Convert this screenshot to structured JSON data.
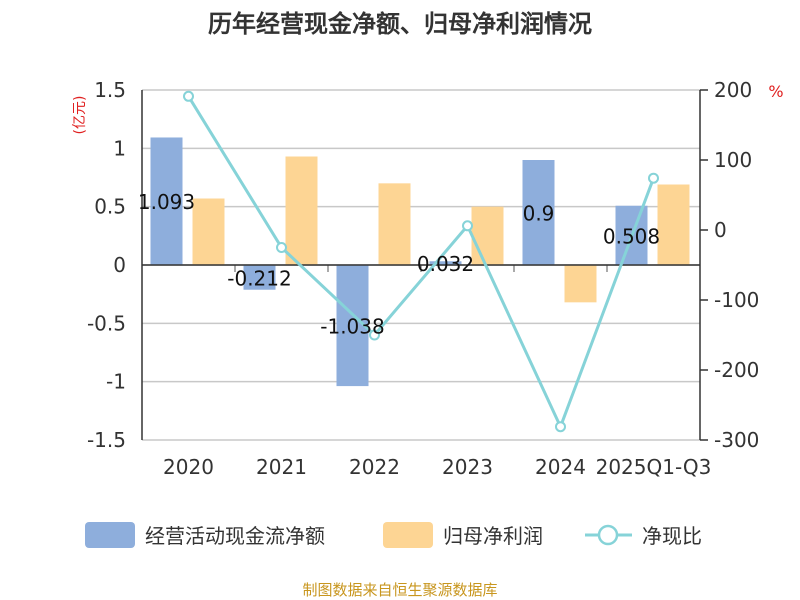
{
  "chart_data": {
    "type": "bar",
    "title": "历年经营现金净额、归母净利润情况",
    "categories": [
      "2020",
      "2021",
      "2022",
      "2023",
      "2024",
      "2025Q1-Q3"
    ],
    "series": [
      {
        "name": "经营活动现金流净额",
        "type": "bar",
        "axis": "left",
        "color": "#8eaedc",
        "values": [
          1.093,
          -0.212,
          -1.038,
          0.032,
          0.9,
          0.508
        ],
        "labels": [
          "1.093",
          "-0.212",
          "-1.038",
          "0.032",
          "0.9",
          "0.508"
        ]
      },
      {
        "name": "归母净利润",
        "type": "bar",
        "axis": "left",
        "color": "#fdd594",
        "values": [
          0.57,
          0.93,
          0.7,
          0.5,
          -0.32,
          0.69
        ]
      },
      {
        "name": "净现比",
        "type": "line",
        "axis": "right",
        "color": "#86d3d8",
        "values": [
          191,
          -25,
          -150,
          6,
          -281,
          74
        ]
      }
    ],
    "y_left": {
      "unit": "(亿元)",
      "ylim": [
        -1.5,
        1.5
      ],
      "ticks": [
        1.5,
        1,
        0.5,
        0,
        -0.5,
        -1,
        -1.5
      ],
      "tick_labels": [
        "1.5",
        "1",
        "0.5",
        "0",
        "-0.5",
        "-1",
        "-1.5"
      ]
    },
    "y_right": {
      "unit": "%",
      "ylim": [
        -300,
        200
      ],
      "ticks": [
        200,
        100,
        0,
        -100,
        -200,
        -300
      ],
      "tick_labels": [
        "200",
        "100",
        "0",
        "-100",
        "-200",
        "-300"
      ]
    },
    "grid": true,
    "legend": "bottom"
  },
  "source": "制图数据来自恒生聚源数据库"
}
